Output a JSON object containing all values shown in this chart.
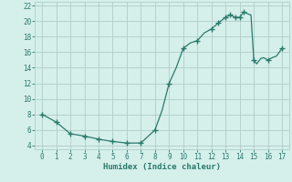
{
  "x": [
    0,
    1,
    2,
    3,
    4,
    5,
    6,
    7,
    8,
    8.5,
    9,
    9.5,
    10,
    10.5,
    11,
    11.5,
    12,
    12.5,
    13,
    13.3,
    13.7,
    14,
    14.3,
    14.5,
    14.8,
    15,
    15.2,
    15.5,
    15.7,
    16,
    16.3,
    16.6,
    17
  ],
  "y": [
    8.0,
    7.0,
    5.5,
    5.2,
    4.8,
    4.5,
    4.3,
    4.3,
    6.0,
    8.5,
    12.0,
    14.0,
    16.5,
    17.2,
    17.5,
    18.5,
    19.0,
    19.8,
    20.5,
    20.8,
    20.5,
    20.5,
    21.2,
    21.0,
    20.8,
    15.0,
    14.5,
    15.2,
    15.3,
    15.0,
    15.3,
    15.5,
    16.5
  ],
  "markers_x": [
    0,
    1,
    2,
    3,
    4,
    5,
    6,
    7,
    8,
    9,
    10,
    11,
    12,
    12.5,
    13,
    13.3,
    13.7,
    14,
    14.3,
    15,
    16,
    17
  ],
  "markers_y": [
    8.0,
    7.0,
    5.5,
    5.2,
    4.8,
    4.5,
    4.3,
    4.3,
    6.0,
    12.0,
    16.5,
    17.5,
    19.0,
    19.8,
    20.5,
    20.8,
    20.5,
    20.5,
    21.2,
    15.0,
    15.0,
    16.5
  ],
  "xlabel": "Humidex (Indice chaleur)",
  "line_color": "#2a7a6a",
  "marker_color": "#2a7a6a",
  "bg_color": "#d5efeb",
  "grid_color": "#b0cdc9",
  "text_color": "#2a7a6a",
  "xlim": [
    -0.5,
    17.5
  ],
  "ylim": [
    3.5,
    22.5
  ],
  "xticks": [
    0,
    1,
    2,
    3,
    4,
    5,
    6,
    7,
    8,
    9,
    10,
    11,
    12,
    13,
    14,
    15,
    16,
    17
  ],
  "yticks": [
    4,
    6,
    8,
    10,
    12,
    14,
    16,
    18,
    20,
    22
  ]
}
